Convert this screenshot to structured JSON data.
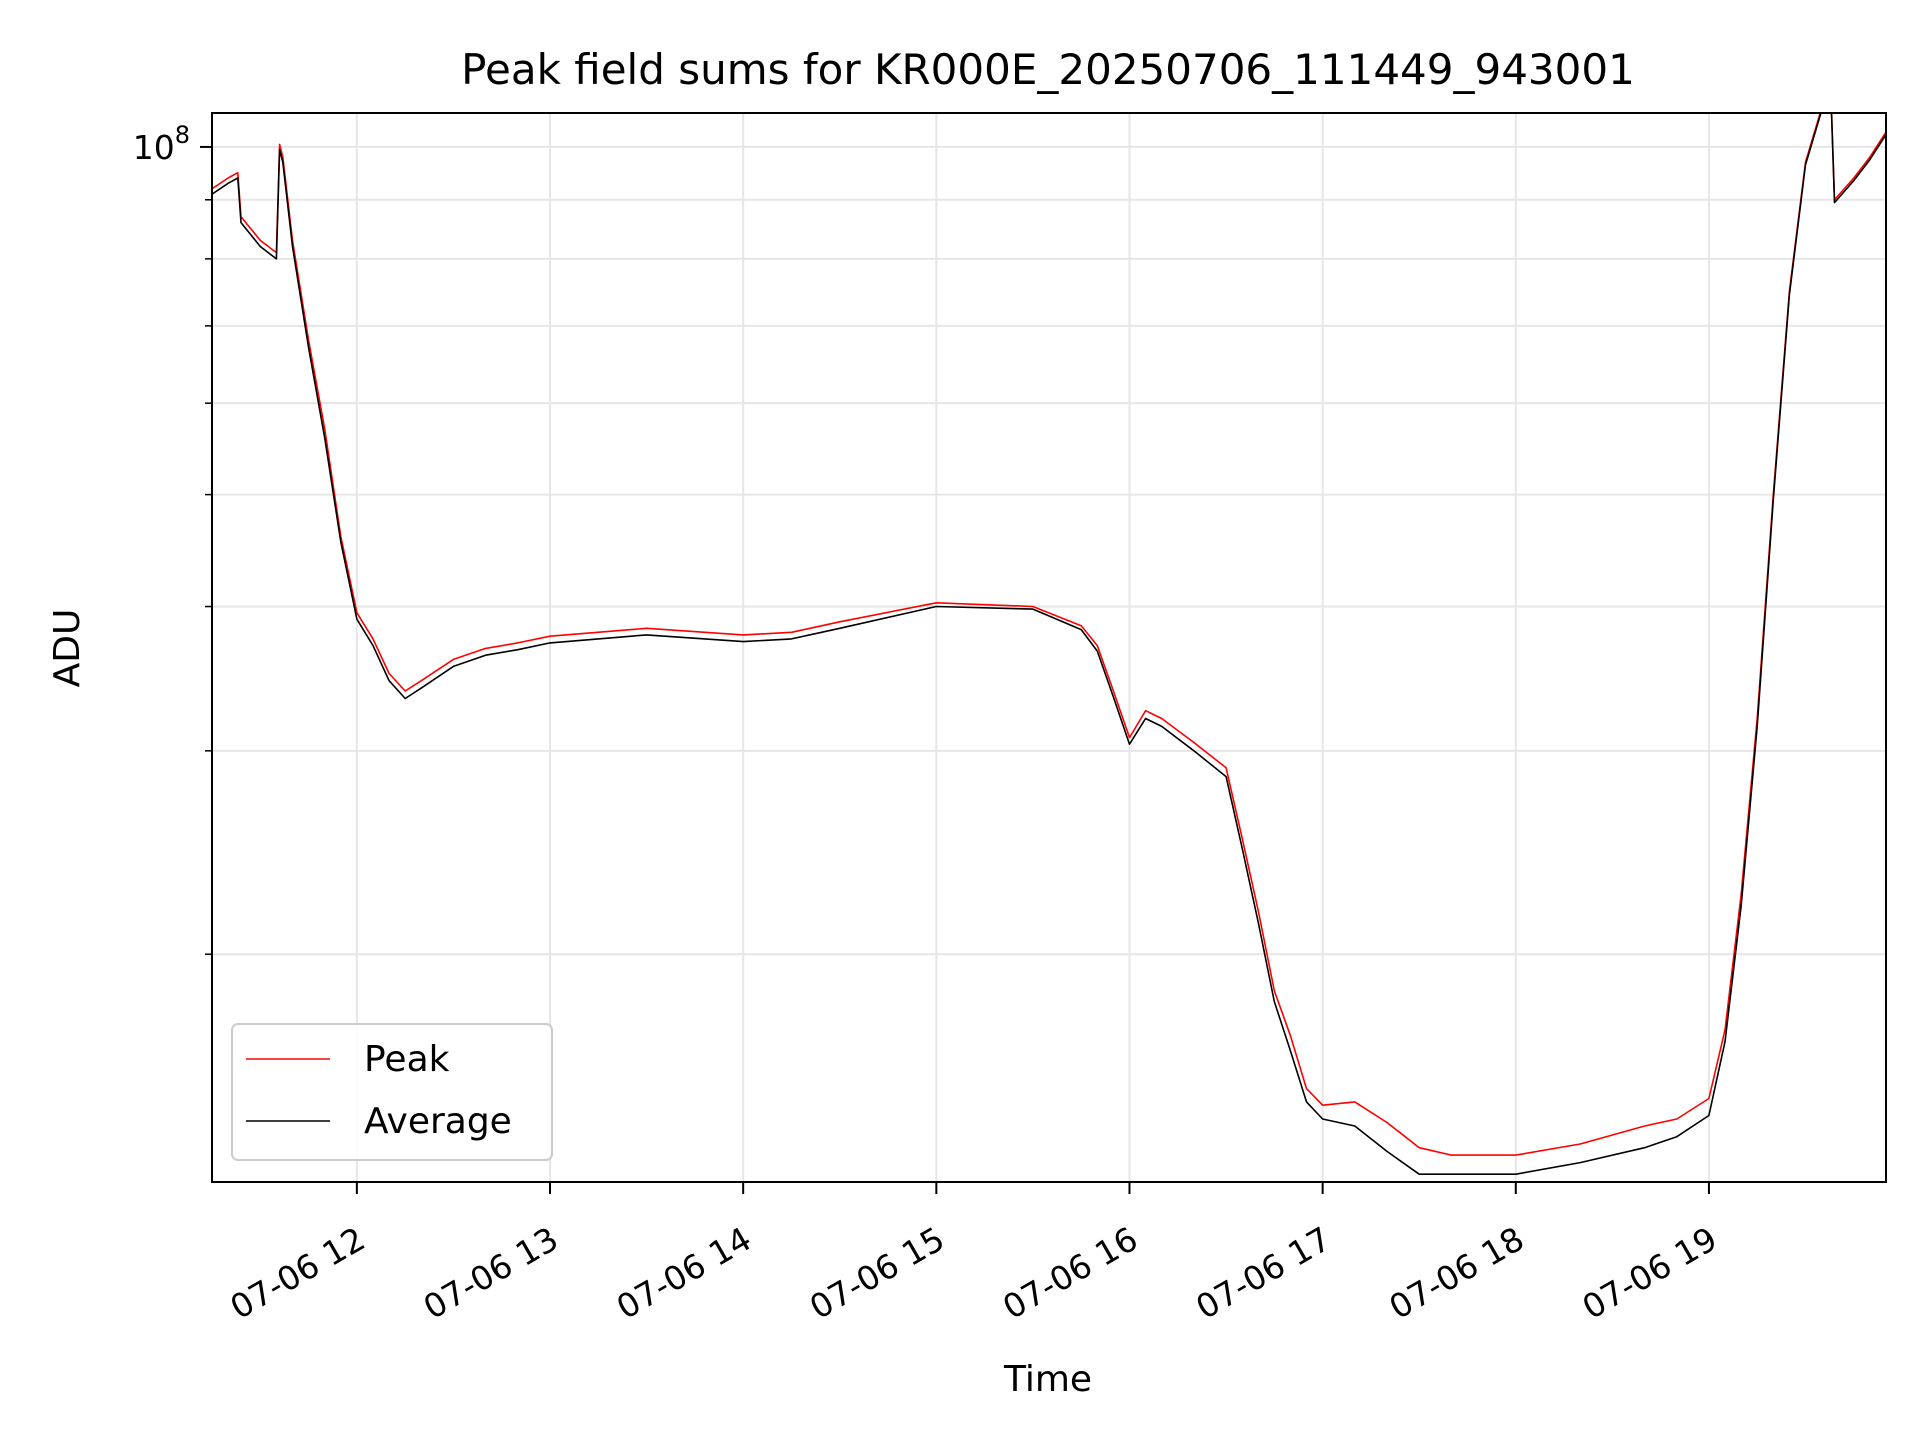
{
  "chart_data": {
    "type": "line",
    "title": "Peak field sums for KR000E_20250706_111449_943001",
    "xlabel": "Time",
    "ylabel": "ADU",
    "yscale": "log",
    "ylim": [
      12700000,
      107000000
    ],
    "xlim": [
      "07-06 11:15",
      "07-06 19:55"
    ],
    "grid": true,
    "legend_position": "lower left",
    "x_tick_labels": [
      "07-06 12",
      "07-06 13",
      "07-06 14",
      "07-06 15",
      "07-06 16",
      "07-06 17",
      "07-06 18",
      "07-06 19"
    ],
    "y_tick_labels": [
      {
        "value": 100000000,
        "label": "10^8"
      }
    ],
    "x": [
      "07-06 11:15",
      "07-06 11:20",
      "07-06 11:23",
      "07-06 11:24",
      "07-06 11:30",
      "07-06 11:35",
      "07-06 11:36",
      "07-06 11:37",
      "07-06 11:40",
      "07-06 11:45",
      "07-06 11:50",
      "07-06 11:55",
      "07-06 12:00",
      "07-06 12:05",
      "07-06 12:10",
      "07-06 12:15",
      "07-06 12:20",
      "07-06 12:30",
      "07-06 12:40",
      "07-06 12:50",
      "07-06 13:00",
      "07-06 13:30",
      "07-06 14:00",
      "07-06 14:15",
      "07-06 14:30",
      "07-06 15:00",
      "07-06 15:30",
      "07-06 15:45",
      "07-06 15:50",
      "07-06 15:55",
      "07-06 16:00",
      "07-06 16:05",
      "07-06 16:10",
      "07-06 16:20",
      "07-06 16:30",
      "07-06 16:35",
      "07-06 16:40",
      "07-06 16:45",
      "07-06 16:50",
      "07-06 16:55",
      "07-06 17:00",
      "07-06 17:10",
      "07-06 17:20",
      "07-06 17:30",
      "07-06 17:40",
      "07-06 18:00",
      "07-06 18:20",
      "07-06 18:40",
      "07-06 18:50",
      "07-06 19:00",
      "07-06 19:05",
      "07-06 19:10",
      "07-06 19:15",
      "07-06 19:20",
      "07-06 19:25",
      "07-06 19:30",
      "07-06 19:35",
      "07-06 19:38",
      "07-06 19:39",
      "07-06 19:45",
      "07-06 19:50",
      "07-06 19:55"
    ],
    "series": [
      {
        "name": "Peak",
        "color": "#ff0000",
        "values": [
          92000000,
          94000000,
          95000000,
          87000000,
          83000000,
          81000000,
          100500000,
          98000000,
          83000000,
          68000000,
          57000000,
          46000000,
          39500000,
          37500000,
          35000000,
          33800000,
          34500000,
          36000000,
          36800000,
          37200000,
          37700000,
          38300000,
          37800000,
          38000000,
          38800000,
          40300000,
          40000000,
          38500000,
          37000000,
          33800000,
          30800000,
          32500000,
          32000000,
          30500000,
          29000000,
          25200000,
          21800000,
          18600000,
          17000000,
          15300000,
          14800000,
          14900000,
          14300000,
          13600000,
          13400000,
          13400000,
          13700000,
          14200000,
          14400000,
          15000000,
          17200000,
          22500000,
          32000000,
          50000000,
          75000000,
          97000000,
          108000000,
          109000000,
          90000000,
          94000000,
          98000000,
          103000000
        ]
      },
      {
        "name": "Average",
        "color": "#000000",
        "values": [
          91000000,
          93000000,
          94000000,
          86000000,
          82000000,
          80000000,
          99500000,
          97000000,
          82000000,
          67000000,
          56000000,
          45500000,
          39000000,
          37000000,
          34500000,
          33300000,
          34000000,
          35500000,
          36300000,
          36700000,
          37200000,
          37800000,
          37300000,
          37500000,
          38300000,
          40000000,
          39800000,
          38200000,
          36600000,
          33400000,
          30400000,
          32000000,
          31500000,
          30000000,
          28500000,
          24700000,
          21300000,
          18200000,
          16500000,
          14900000,
          14400000,
          14200000,
          13500000,
          12900000,
          12900000,
          12900000,
          13200000,
          13600000,
          13900000,
          14500000,
          16800000,
          22000000,
          31500000,
          49500000,
          74500000,
          96500000,
          107500000,
          108500000,
          89500000,
          93500000,
          97500000,
          102500000
        ]
      }
    ]
  }
}
